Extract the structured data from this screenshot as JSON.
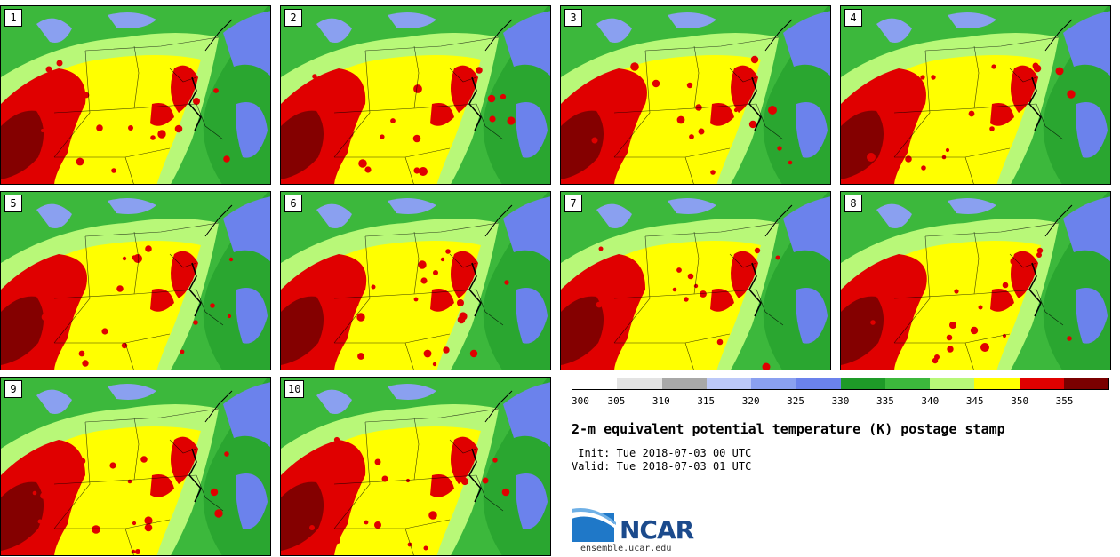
{
  "panels": [
    {
      "label": "1"
    },
    {
      "label": "2"
    },
    {
      "label": "3"
    },
    {
      "label": "4"
    },
    {
      "label": "5"
    },
    {
      "label": "6"
    },
    {
      "label": "7"
    },
    {
      "label": "8"
    },
    {
      "label": "9"
    },
    {
      "label": "10"
    }
  ],
  "colorbar": {
    "colors": [
      "#ffffff",
      "#e3e3e3",
      "#a8a8a8",
      "#bcc8f8",
      "#8aa0f0",
      "#6b82ec",
      "#1e9a28",
      "#3cb83c",
      "#b8f878",
      "#ffff00",
      "#e00000",
      "#7a0000"
    ],
    "tick_labels": [
      "300",
      "305",
      "310",
      "315",
      "320",
      "325",
      "330",
      "335",
      "340",
      "345",
      "350",
      "355"
    ]
  },
  "title": "2-m equivalent potential temperature (K) postage stamp",
  "init": " Init: Tue 2018-07-03 00 UTC",
  "valid": "Valid: Tue 2018-07-03 01 UTC",
  "logo": {
    "text": "NCAR",
    "icon": "ncar-logo-icon"
  },
  "site": "ensemble.ucar.edu"
}
